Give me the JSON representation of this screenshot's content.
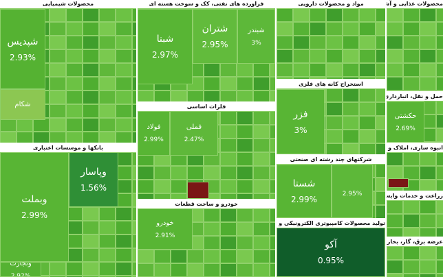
{
  "sectors": [
    {
      "title": "محصولات شیمیایی",
      "tiles": [
        {
          "label": "شپدیس",
          "change": "2.93%"
        },
        {
          "label": "شکام"
        }
      ]
    },
    {
      "title": "فراورده های نفتی، کک و سوخت هسته ای",
      "tiles": [
        {
          "label": "شبنا",
          "change": "2.97%"
        },
        {
          "label": "شتران",
          "change": "2.95%"
        },
        {
          "label": "شبندر",
          "change": "3%"
        }
      ]
    },
    {
      "title": "مواد و محصولات دارویی",
      "tiles": []
    },
    {
      "title": "محصولات غذایی و آشامیدنی به جز قند و شکر",
      "tiles": []
    },
    {
      "title": "بانکها و موسسات اعتباری",
      "tiles": [
        {
          "label": "وبملت",
          "change": "2.99%"
        },
        {
          "label": "وپاسار",
          "change": "1.56%"
        },
        {
          "label": "وتجارت",
          "change": "2.92%"
        }
      ]
    },
    {
      "title": "فلزات اساسی",
      "tiles": [
        {
          "label": "فولاد",
          "change": "2.99%"
        },
        {
          "label": "فملی",
          "change": "2.47%"
        }
      ]
    },
    {
      "title": "خودرو و ساخت قطعات",
      "tiles": [
        {
          "label": "خودرو",
          "change": "2.91%"
        }
      ]
    },
    {
      "title": "استخراج کانه های فلزی",
      "tiles": [
        {
          "label": "فزر",
          "change": "3%"
        }
      ]
    },
    {
      "title": "شرکتهای چند رشته ای صنعتی",
      "tiles": [
        {
          "label": "شستا",
          "change": "2.99%"
        },
        {
          "change": "2.95%"
        }
      ]
    },
    {
      "title": "تولید محصولات کامپیوتری الکترونیکی و نوری",
      "tiles": [
        {
          "label": "آکو",
          "change": "0.95%"
        }
      ]
    },
    {
      "title": "حمل و نقل، انبارداری و ارتباطات",
      "tiles": [
        {
          "label": "حکشتی",
          "change": "2.69%"
        }
      ]
    },
    {
      "title": "انبوه سازی، املاک و مستغلات",
      "tiles": []
    },
    {
      "title": "زراعت و خدمات وابسته",
      "tiles": []
    },
    {
      "title": "عرضه برق، گاز، بخار و آب گرم",
      "tiles": []
    }
  ]
}
